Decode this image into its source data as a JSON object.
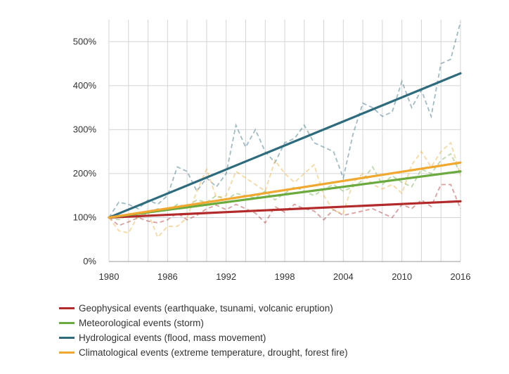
{
  "chart_data": {
    "type": "line",
    "xlim": [
      1980,
      2016
    ],
    "ylim": [
      0,
      550
    ],
    "x_ticks": [
      "1980",
      "1986",
      "1992",
      "1998",
      "2004",
      "2010",
      "2016"
    ],
    "y_ticks": [
      {
        "value": 0,
        "label": "0%"
      },
      {
        "value": 100,
        "label": "100%"
      },
      {
        "value": 200,
        "label": "200%"
      },
      {
        "value": 300,
        "label": "300%"
      },
      {
        "value": 400,
        "label": "400%"
      },
      {
        "value": 500,
        "label": "500%"
      }
    ],
    "grid": "vertical-and-horizontal",
    "legend_position": "bottom",
    "series": [
      {
        "name": "Geophysical events (earthquake, tsunami, volcanic eruption)",
        "color": "#b22a2a",
        "trend": [
          100,
          137
        ],
        "values": [
          100,
          82,
          90,
          100,
          92,
          88,
          95,
          110,
          95,
          105,
          120,
          128,
          118,
          130,
          120,
          110,
          88,
          125,
          112,
          130,
          120,
          115,
          95,
          118,
          105,
          110,
          115,
          120,
          110,
          100,
          130,
          120,
          140,
          125,
          175,
          175,
          120
        ]
      },
      {
        "name": "Meteorological events (storm)",
        "color": "#6aaa3f",
        "trend": [
          100,
          205
        ],
        "values": [
          100,
          95,
          105,
          100,
          110,
          120,
          115,
          130,
          125,
          140,
          135,
          150,
          140,
          155,
          150,
          145,
          160,
          140,
          155,
          170,
          160,
          150,
          165,
          175,
          160,
          170,
          185,
          215,
          175,
          195,
          180,
          170,
          210,
          200,
          230,
          245,
          200
        ]
      },
      {
        "name": "Hydrological events (flood, mass movement)",
        "color": "#2d6b7d",
        "trend": [
          100,
          428
        ],
        "values": [
          100,
          135,
          130,
          120,
          140,
          130,
          150,
          215,
          205,
          160,
          190,
          170,
          200,
          310,
          260,
          300,
          250,
          225,
          270,
          280,
          310,
          270,
          260,
          250,
          190,
          290,
          360,
          350,
          330,
          340,
          410,
          350,
          390,
          330,
          450,
          460,
          545
        ]
      },
      {
        "name": "Climatological events (extreme temperature, drought, forest fire)",
        "color": "#f0a830",
        "trend": [
          100,
          225
        ],
        "values": [
          100,
          70,
          65,
          105,
          110,
          55,
          80,
          80,
          100,
          160,
          210,
          145,
          150,
          205,
          190,
          175,
          160,
          230,
          200,
          180,
          200,
          220,
          150,
          115,
          110,
          180,
          200,
          175,
          165,
          175,
          155,
          220,
          250,
          215,
          250,
          270,
          195
        ]
      }
    ]
  }
}
